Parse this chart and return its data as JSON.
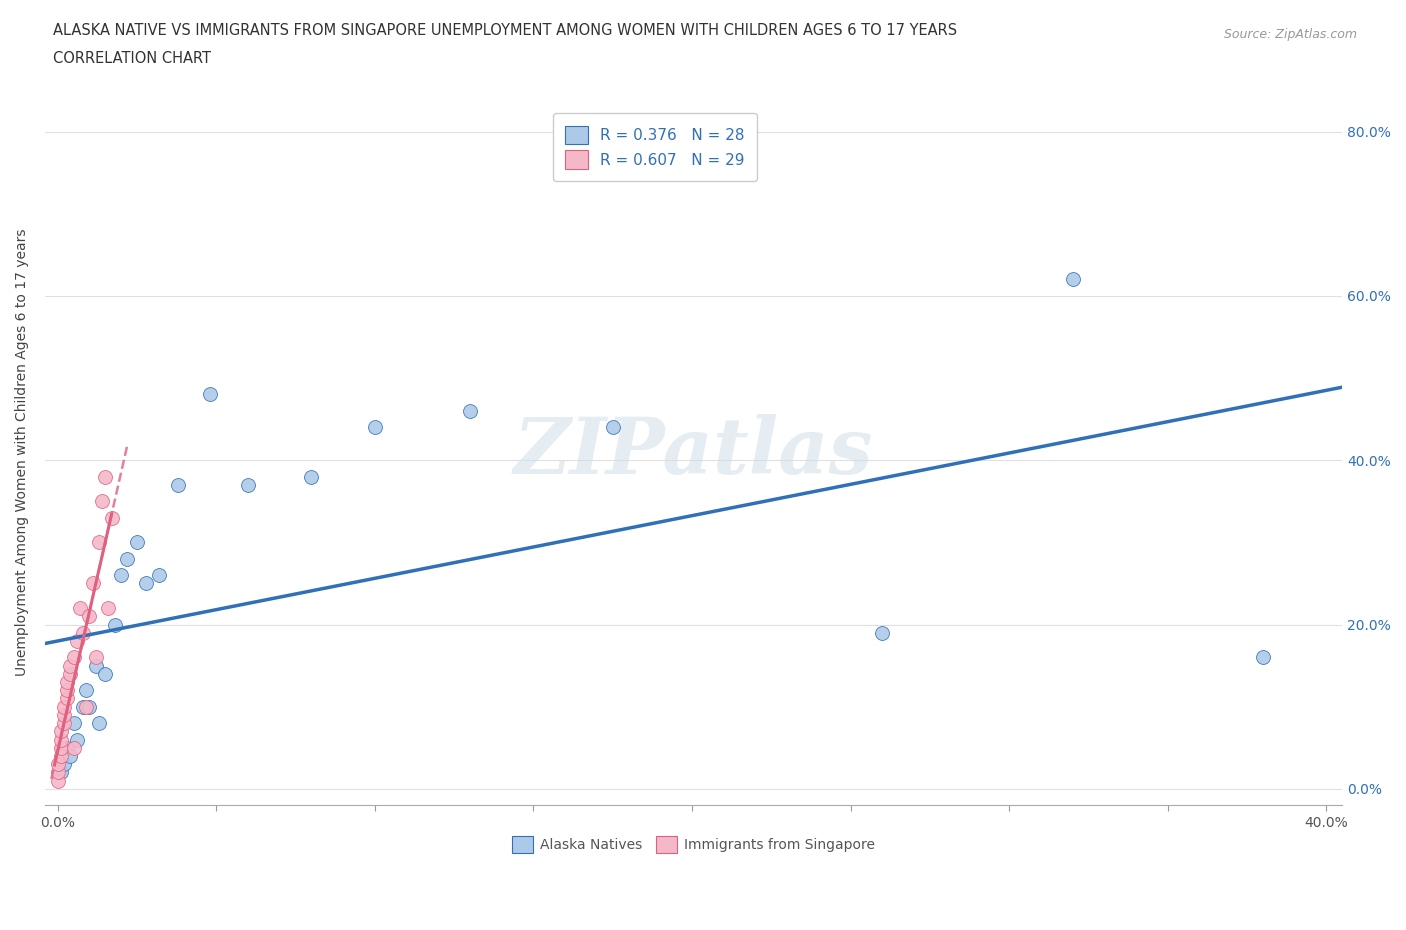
{
  "title_line1": "ALASKA NATIVE VS IMMIGRANTS FROM SINGAPORE UNEMPLOYMENT AMONG WOMEN WITH CHILDREN AGES 6 TO 17 YEARS",
  "title_line2": "CORRELATION CHART",
  "source_text": "Source: ZipAtlas.com",
  "ylabel": "Unemployment Among Women with Children Ages 6 to 17 years",
  "alaska_x": [
    0.001,
    0.002,
    0.003,
    0.004,
    0.005,
    0.006,
    0.008,
    0.009,
    0.01,
    0.012,
    0.013,
    0.015,
    0.018,
    0.02,
    0.022,
    0.025,
    0.028,
    0.032,
    0.038,
    0.048,
    0.06,
    0.08,
    0.1,
    0.13,
    0.175,
    0.26,
    0.32,
    0.38
  ],
  "alaska_y": [
    0.02,
    0.03,
    0.05,
    0.04,
    0.08,
    0.06,
    0.1,
    0.12,
    0.1,
    0.15,
    0.08,
    0.14,
    0.2,
    0.26,
    0.28,
    0.3,
    0.25,
    0.26,
    0.37,
    0.48,
    0.37,
    0.38,
    0.44,
    0.46,
    0.44,
    0.19,
    0.62,
    0.16
  ],
  "singapore_x": [
    0.0,
    0.0,
    0.0,
    0.001,
    0.001,
    0.001,
    0.001,
    0.002,
    0.002,
    0.002,
    0.003,
    0.003,
    0.003,
    0.004,
    0.004,
    0.005,
    0.005,
    0.006,
    0.007,
    0.008,
    0.009,
    0.01,
    0.011,
    0.012,
    0.013,
    0.014,
    0.015,
    0.016,
    0.017
  ],
  "singapore_y": [
    0.01,
    0.02,
    0.03,
    0.04,
    0.05,
    0.06,
    0.07,
    0.08,
    0.09,
    0.1,
    0.11,
    0.12,
    0.13,
    0.14,
    0.15,
    0.16,
    0.05,
    0.18,
    0.22,
    0.19,
    0.1,
    0.21,
    0.25,
    0.16,
    0.3,
    0.35,
    0.38,
    0.22,
    0.33
  ],
  "alaska_color": "#adc9e8",
  "singapore_color": "#f5b8c8",
  "alaska_line_color": "#3070b8",
  "singapore_line_color": "#e06080",
  "alaska_R": 0.376,
  "alaska_N": 28,
  "singapore_R": 0.607,
  "singapore_N": 29,
  "xmin": -0.004,
  "xmax": 0.405,
  "ymin": -0.02,
  "ymax": 0.84,
  "xticks": [
    0.0,
    0.05,
    0.1,
    0.15,
    0.2,
    0.25,
    0.3,
    0.35,
    0.4
  ],
  "xtick_labels": [
    "0.0%",
    "",
    "",
    "",
    "",
    "",
    "",
    "",
    "40.0%"
  ],
  "yticks": [
    0.0,
    0.2,
    0.4,
    0.6,
    0.8
  ],
  "ytick_labels_right": [
    "0.0%",
    "20.0%",
    "40.0%",
    "60.0%",
    "80.0%"
  ],
  "watermark": "ZIPatlas",
  "background_color": "#ffffff",
  "grid_color": "#e0e0e0",
  "marker_size": 100,
  "title_fontsize": 10.5,
  "legend_fontsize": 11
}
